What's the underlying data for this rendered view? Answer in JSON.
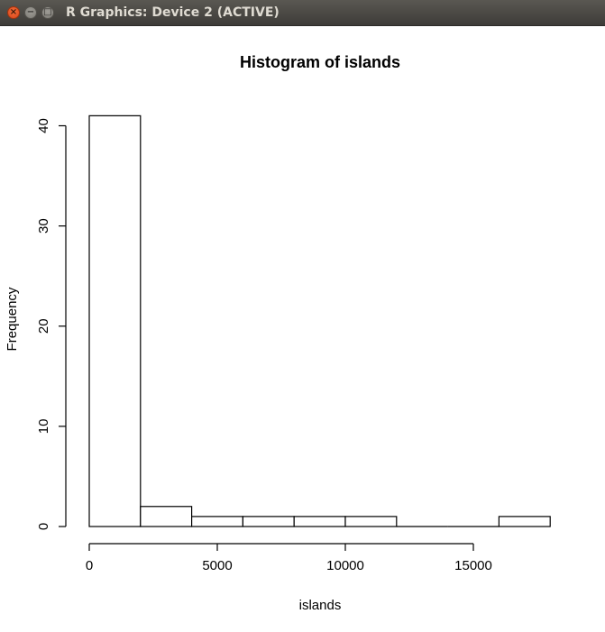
{
  "window": {
    "title": "R Graphics: Device 2 (ACTIVE)",
    "buttons": {
      "close_icon": "close-icon",
      "minimize_icon": "minimize-icon",
      "maximize_icon": "maximize-icon"
    }
  },
  "chart_data": {
    "type": "bar",
    "title": "Histogram of islands",
    "xlabel": "islands",
    "ylabel": "Frequency",
    "bins": [
      {
        "from": 0,
        "to": 2000,
        "count": 41
      },
      {
        "from": 2000,
        "to": 4000,
        "count": 2
      },
      {
        "from": 4000,
        "to": 6000,
        "count": 1
      },
      {
        "from": 6000,
        "to": 8000,
        "count": 1
      },
      {
        "from": 8000,
        "to": 10000,
        "count": 1
      },
      {
        "from": 10000,
        "to": 12000,
        "count": 1
      },
      {
        "from": 12000,
        "to": 14000,
        "count": 0
      },
      {
        "from": 14000,
        "to": 16000,
        "count": 0
      },
      {
        "from": 16000,
        "to": 18000,
        "count": 1
      }
    ],
    "xticks": [
      0,
      5000,
      10000,
      15000
    ],
    "xtick_labels": [
      "0",
      "5000",
      "10000",
      "15000"
    ],
    "yticks": [
      0,
      10,
      20,
      30,
      40
    ],
    "ytick_labels": [
      "0",
      "10",
      "20",
      "30",
      "40"
    ],
    "xlim": [
      0,
      18000
    ],
    "ylim": [
      0,
      41
    ],
    "grid": false,
    "legend": "none",
    "fill_color": "#ffffff",
    "stroke_color": "#000000"
  }
}
